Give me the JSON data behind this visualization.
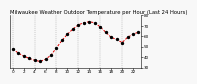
{
  "title": "Milwaukee Weather Outdoor Temperature per Hour (Last 24 Hours)",
  "hours": [
    0,
    1,
    2,
    3,
    4,
    5,
    6,
    7,
    8,
    9,
    10,
    11,
    12,
    13,
    14,
    15,
    16,
    17,
    18,
    19,
    20,
    21,
    22,
    23
  ],
  "temps": [
    48,
    44,
    41,
    39,
    37,
    36,
    38,
    42,
    49,
    56,
    62,
    67,
    71,
    73,
    74,
    73,
    69,
    64,
    59,
    57,
    54,
    59,
    62,
    64
  ],
  "line_color": "#dd0000",
  "marker_color": "#000000",
  "bg_color": "#f8f8f8",
  "grid_color": "#999999",
  "ylim": [
    30,
    80
  ],
  "yticks": [
    30,
    40,
    50,
    60,
    70,
    80
  ],
  "ytick_labels": [
    "30",
    "40",
    "50",
    "60",
    "70",
    "80"
  ],
  "xlim": [
    -0.5,
    23.5
  ],
  "xticks": [
    0,
    2,
    4,
    6,
    8,
    10,
    12,
    14,
    16,
    18,
    20,
    22
  ],
  "xtick_labels": [
    "0",
    "2",
    "4",
    "6",
    "8",
    "10",
    "12",
    "14",
    "16",
    "18",
    "20",
    "22"
  ],
  "vgrid_x": [
    0,
    4,
    8,
    12,
    16,
    20
  ],
  "title_fontsize": 3.8,
  "tick_fontsize": 3.0,
  "line_width": 0.7,
  "marker_size": 2.0
}
